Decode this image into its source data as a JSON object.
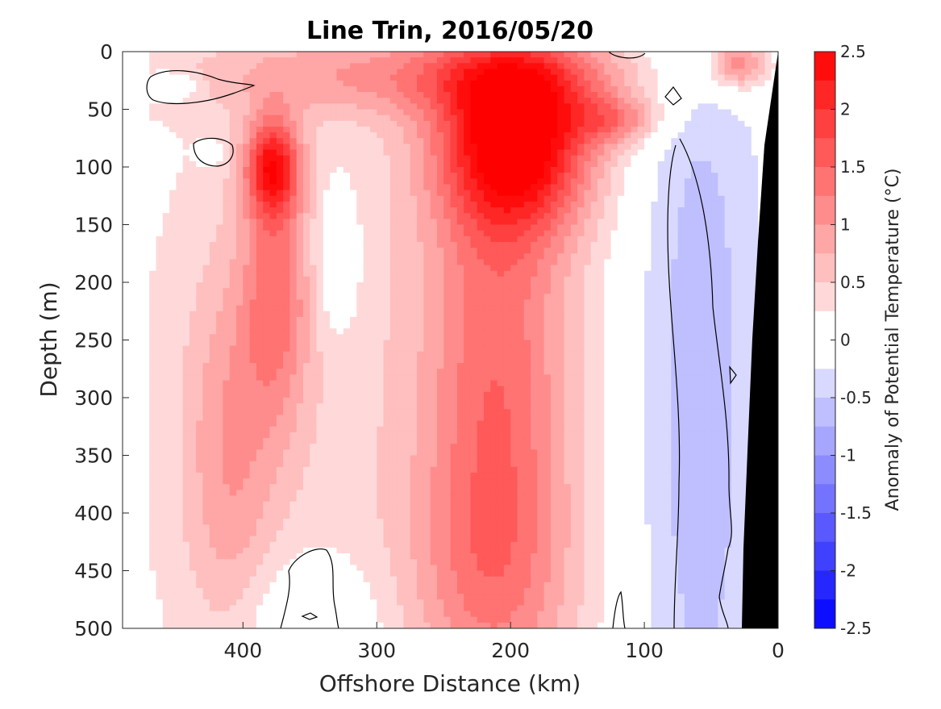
{
  "chart_data": {
    "type": "heatmap",
    "title": "Line Trin, 2016/05/20",
    "xlabel": "Offshore Distance (km)",
    "ylabel": "Depth (m)",
    "colorbar_label": "Anomaly of Potential Temperature (°C)",
    "xlim": [
      490,
      0
    ],
    "ylim": [
      0,
      500
    ],
    "y_reversed": true,
    "x_reversed": true,
    "x_ticks": [
      400,
      300,
      200,
      100,
      0
    ],
    "x_tick_labels": [
      "400",
      "300",
      "200",
      "100",
      "0"
    ],
    "y_ticks": [
      0,
      50,
      100,
      150,
      200,
      250,
      300,
      350,
      400,
      450,
      500
    ],
    "y_tick_labels": [
      "0",
      "50",
      "100",
      "150",
      "200",
      "250",
      "300",
      "350",
      "400",
      "450",
      "500"
    ],
    "colorbar_range": [
      -2.5,
      2.5
    ],
    "colorbar_step": 0.25,
    "colorbar_ticks": [
      2.5,
      2,
      1.5,
      1,
      0.5,
      0,
      -0.5,
      -1,
      -1.5,
      -2,
      -2.5
    ],
    "colorbar_tick_labels": [
      "2.5",
      "2",
      "1.5",
      "1",
      "0.5",
      "0",
      "-0.5",
      "-1",
      "-1.5",
      "-2",
      "-2.5"
    ],
    "colormap": {
      "negative": "#0000ff",
      "zero": "#ffffff",
      "positive": "#ff0000"
    },
    "data_extent_km": [
      470,
      0
    ],
    "features": [
      {
        "name": "main-warm-core",
        "x": 195,
        "y": 75,
        "value": 2.4,
        "sx": 40,
        "sy": 55
      },
      {
        "name": "main-warm-column",
        "x": 210,
        "y": 280,
        "value": 1.1,
        "sx": 38,
        "sy": 160
      },
      {
        "name": "main-warm-deep",
        "x": 215,
        "y": 460,
        "value": 0.6,
        "sx": 45,
        "sy": 80
      },
      {
        "name": "secondary-warm-core",
        "x": 378,
        "y": 100,
        "value": 1.9,
        "sx": 14,
        "sy": 30
      },
      {
        "name": "secondary-warm-column",
        "x": 375,
        "y": 210,
        "value": 1.0,
        "sx": 18,
        "sy": 80
      },
      {
        "name": "western-warm-column",
        "x": 410,
        "y": 350,
        "value": 0.7,
        "sx": 25,
        "sy": 120
      },
      {
        "name": "surface-warm-band",
        "x": 250,
        "y": 20,
        "value": 0.9,
        "sx": 130,
        "sy": 25
      },
      {
        "name": "eastern-warm-lobe",
        "x": 120,
        "y": 60,
        "value": 0.9,
        "sx": 25,
        "sy": 15
      },
      {
        "name": "nearshore-surface-warm",
        "x": 30,
        "y": 10,
        "value": 1.2,
        "sx": 15,
        "sy": 15
      },
      {
        "name": "background-warm",
        "x": 300,
        "y": 300,
        "value": 0.4,
        "sx": 170,
        "sy": 300
      },
      {
        "name": "cold-patch-surface",
        "x": 455,
        "y": 30,
        "value": -0.6,
        "sx": 14,
        "sy": 8
      },
      {
        "name": "cold-patch-small",
        "x": 425,
        "y": 88,
        "value": -0.4,
        "sx": 6,
        "sy": 6
      },
      {
        "name": "central-cool-gap",
        "x": 330,
        "y": 180,
        "value": -0.5,
        "sx": 12,
        "sy": 45
      },
      {
        "name": "coastal-cool",
        "x": 60,
        "y": 300,
        "value": -0.8,
        "sx": 38,
        "sy": 300
      },
      {
        "name": "deep-cool",
        "x": 350,
        "y": 500,
        "value": -0.5,
        "sx": 40,
        "sy": 45
      }
    ]
  }
}
